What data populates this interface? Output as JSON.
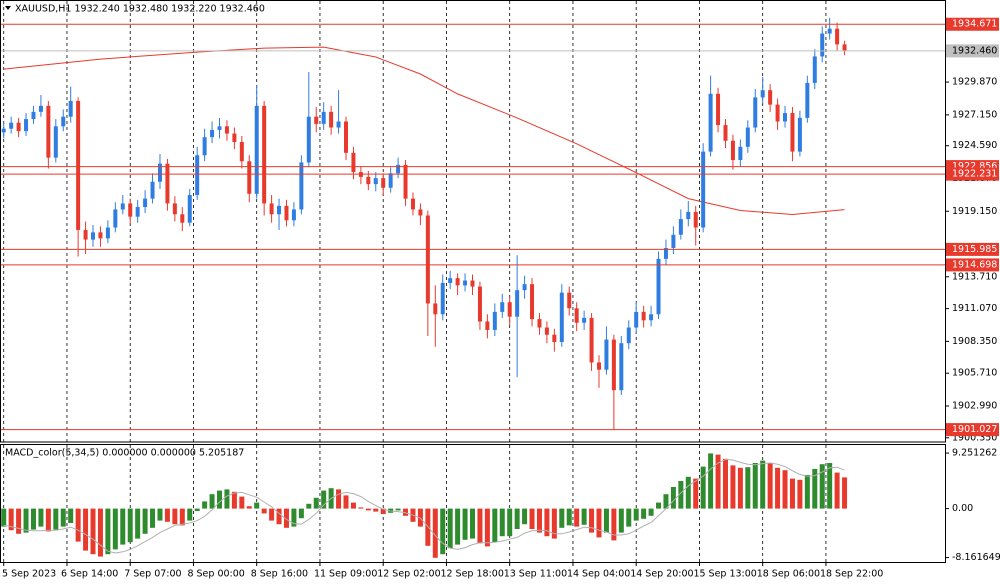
{
  "chart_data": [
    {
      "type": "candlestick",
      "title": "XAUUSD,H1  1932.240 1932.480 1932.220 1932.460",
      "up_color": "#2f7de1",
      "down_color": "#e8392d",
      "xlim": [
        -0.5,
        126.5
      ],
      "xticks": [
        {
          "value": 0,
          "label": "5 Sep 2023"
        },
        {
          "value": 8.5,
          "label": "6 Sep 14:00"
        },
        {
          "value": 17,
          "label": "7 Sep 07:00"
        },
        {
          "value": 25.5,
          "label": "8 Sep 00:00"
        },
        {
          "value": 34,
          "label": "8 Sep 16:00"
        },
        {
          "value": 42.5,
          "label": "11 Sep 09:00"
        },
        {
          "value": 51,
          "label": "12 Sep 02:00"
        },
        {
          "value": 59.5,
          "label": "12 Sep 18:00"
        },
        {
          "value": 68,
          "label": "13 Sep 11:00"
        },
        {
          "value": 76.5,
          "label": "14 Sep 04:00"
        },
        {
          "value": 85,
          "label": "14 Sep 20:00"
        },
        {
          "value": 93.5,
          "label": "15 Sep 13:00"
        },
        {
          "value": 102,
          "label": "18 Sep 06:00"
        },
        {
          "value": 110.5,
          "label": "18 Sep 22:00"
        }
      ],
      "ylim": [
        1900.0,
        1936.6
      ],
      "yticks": [
        {
          "value": 1929.87,
          "label": "1929.870"
        },
        {
          "value": 1927.15,
          "label": "1927.150"
        },
        {
          "value": 1924.59,
          "label": "1924.590"
        },
        {
          "value": 1921.87,
          "label": "1921.870"
        },
        {
          "value": 1919.15,
          "label": "1919.150"
        },
        {
          "value": 1913.71,
          "label": "1913.710"
        },
        {
          "value": 1911.07,
          "label": "1911.070"
        },
        {
          "value": 1908.35,
          "label": "1908.350"
        },
        {
          "value": 1905.71,
          "label": "1905.710"
        },
        {
          "value": 1902.99,
          "label": "1902.990"
        },
        {
          "value": 1900.35,
          "label": "1900.350"
        }
      ],
      "levels": [
        {
          "value": 1934.671,
          "label": "1934.671",
          "color": "#e8392d"
        },
        {
          "value": 1932.46,
          "label": "1932.460",
          "color": "#c0c0c0"
        },
        {
          "value": 1922.856,
          "label": "1922.856",
          "color": "#e8392d"
        },
        {
          "value": 1922.231,
          "label": "1922.231",
          "color": "#e8392d"
        },
        {
          "value": 1915.985,
          "label": "1915.985",
          "color": "#e8392d"
        },
        {
          "value": 1914.698,
          "label": "1914.698",
          "color": "#e8392d"
        },
        {
          "value": 1901.027,
          "label": "1901.027",
          "color": "#e8392d"
        }
      ],
      "open": [
        1925.7,
        1926.0,
        1926.5,
        1925.8,
        1926.8,
        1927.4,
        1927.9,
        1923.6,
        1926.2,
        1927.0,
        1928.3,
        1917.6,
        1916.8,
        1917.4,
        1916.9,
        1917.8,
        1919.3,
        1919.8,
        1918.7,
        1919.5,
        1920.2,
        1921.6,
        1923.1,
        1919.8,
        1918.9,
        1918.2,
        1920.5,
        1923.8,
        1925.3,
        1925.9,
        1926.2,
        1925.6,
        1924.9,
        1923.3,
        1920.6,
        1927.9,
        1919.8,
        1918.9,
        1919.6,
        1918.4,
        1919.3,
        1923.2,
        1927.0,
        1926.4,
        1927.4,
        1926.1,
        1926.6,
        1924.0,
        1922.4,
        1922.0,
        1921.4,
        1921.9,
        1921.1,
        1922.3,
        1923.0,
        1920.2,
        1919.3,
        1918.8,
        1911.5,
        1910.6,
        1913.2,
        1913.6,
        1913.0,
        1913.4,
        1912.9,
        1910.0,
        1909.3,
        1910.8,
        1911.6,
        1910.4,
        1912.6,
        1913.1,
        1910.2,
        1909.5,
        1908.9,
        1908.3,
        1912.4,
        1911.1,
        1909.9,
        1910.3,
        1906.6,
        1906.0,
        1908.5,
        1904.3,
        1908.2,
        1909.5,
        1910.8,
        1910.1,
        1910.6,
        1915.2,
        1916.1,
        1917.2,
        1918.5,
        1919.1,
        1917.8,
        1924.1,
        1928.9,
        1926.3,
        1925.0,
        1923.4,
        1924.5,
        1926.1,
        1928.6,
        1929.2,
        1928.0,
        1926.6,
        1927.3,
        1924.1,
        1926.9,
        1929.8,
        1932.0,
        1933.9,
        1934.3,
        1933.0
      ],
      "high": [
        1926.6,
        1927.0,
        1926.9,
        1927.3,
        1927.9,
        1928.8,
        1928.3,
        1926.8,
        1927.6,
        1929.5,
        1928.6,
        1918.3,
        1918.0,
        1917.9,
        1918.4,
        1919.9,
        1920.5,
        1920.2,
        1920.1,
        1920.9,
        1922.3,
        1923.9,
        1923.5,
        1920.4,
        1919.5,
        1921.0,
        1924.5,
        1926.0,
        1926.6,
        1926.9,
        1926.7,
        1926.1,
        1925.4,
        1923.8,
        1929.6,
        1928.3,
        1920.5,
        1920.2,
        1920.1,
        1919.9,
        1923.8,
        1930.7,
        1927.8,
        1928.2,
        1927.9,
        1929.2,
        1927.0,
        1924.5,
        1922.9,
        1922.5,
        1922.4,
        1922.3,
        1922.8,
        1923.6,
        1923.4,
        1920.7,
        1919.8,
        1919.2,
        1913.0,
        1913.9,
        1914.2,
        1914.0,
        1914.0,
        1913.9,
        1913.3,
        1910.6,
        1911.5,
        1912.3,
        1912.1,
        1915.5,
        1913.8,
        1913.6,
        1910.7,
        1910.0,
        1909.4,
        1913.1,
        1912.9,
        1911.6,
        1910.9,
        1910.7,
        1907.2,
        1909.6,
        1908.9,
        1908.8,
        1910.1,
        1911.6,
        1911.3,
        1911.3,
        1915.8,
        1916.8,
        1917.9,
        1919.3,
        1920.0,
        1919.6,
        1924.8,
        1930.4,
        1929.4,
        1926.8,
        1925.5,
        1925.1,
        1926.7,
        1929.3,
        1930.3,
        1929.7,
        1928.5,
        1927.9,
        1927.8,
        1927.5,
        1930.4,
        1932.6,
        1934.5,
        1935.2,
        1934.8,
        1933.3
      ],
      "low": [
        1925.2,
        1925.6,
        1925.3,
        1925.4,
        1926.4,
        1927.0,
        1922.7,
        1923.2,
        1925.8,
        1926.5,
        1915.4,
        1915.6,
        1916.2,
        1916.2,
        1916.5,
        1917.4,
        1918.9,
        1918.1,
        1918.2,
        1919.0,
        1919.8,
        1921.0,
        1919.2,
        1918.3,
        1917.5,
        1917.9,
        1920.1,
        1923.3,
        1924.8,
        1925.2,
        1925.0,
        1924.3,
        1922.7,
        1919.9,
        1920.2,
        1918.8,
        1918.2,
        1917.6,
        1917.9,
        1917.9,
        1918.9,
        1922.8,
        1925.7,
        1925.9,
        1925.5,
        1925.6,
        1923.4,
        1921.8,
        1921.4,
        1920.9,
        1920.8,
        1920.5,
        1920.7,
        1921.9,
        1919.6,
        1918.8,
        1918.0,
        1908.8,
        1907.9,
        1910.1,
        1912.7,
        1912.2,
        1912.5,
        1912.2,
        1909.3,
        1908.6,
        1908.8,
        1910.3,
        1909.7,
        1905.4,
        1911.9,
        1909.6,
        1908.9,
        1908.2,
        1907.5,
        1907.9,
        1910.5,
        1909.2,
        1909.3,
        1905.9,
        1904.5,
        1905.6,
        1901.0,
        1903.9,
        1907.7,
        1909.0,
        1909.5,
        1909.6,
        1910.2,
        1914.7,
        1915.6,
        1916.8,
        1917.9,
        1916.3,
        1917.4,
        1923.7,
        1925.7,
        1924.4,
        1922.6,
        1922.9,
        1924.0,
        1925.7,
        1928.1,
        1927.4,
        1925.9,
        1926.1,
        1923.3,
        1923.7,
        1926.5,
        1929.3,
        1931.5,
        1933.4,
        1932.5,
        1932.1
      ],
      "close": [
        1926.0,
        1926.5,
        1925.8,
        1926.8,
        1927.4,
        1927.9,
        1923.6,
        1926.2,
        1927.0,
        1928.3,
        1917.6,
        1916.8,
        1917.4,
        1916.9,
        1917.8,
        1919.3,
        1919.8,
        1918.7,
        1919.5,
        1920.2,
        1921.6,
        1923.1,
        1919.8,
        1918.9,
        1918.2,
        1920.5,
        1923.8,
        1925.3,
        1925.9,
        1926.2,
        1925.6,
        1924.9,
        1923.3,
        1920.6,
        1927.9,
        1919.8,
        1918.9,
        1919.6,
        1918.4,
        1919.3,
        1923.2,
        1927.0,
        1926.4,
        1927.4,
        1926.1,
        1926.6,
        1924.0,
        1922.4,
        1922.0,
        1921.4,
        1921.9,
        1921.1,
        1922.3,
        1923.0,
        1920.2,
        1919.3,
        1918.8,
        1911.5,
        1910.6,
        1913.2,
        1913.6,
        1913.0,
        1913.4,
        1912.9,
        1910.0,
        1909.3,
        1910.8,
        1911.6,
        1910.4,
        1912.6,
        1913.1,
        1910.2,
        1909.5,
        1908.9,
        1908.3,
        1912.4,
        1911.1,
        1909.9,
        1910.3,
        1906.6,
        1906.0,
        1908.5,
        1904.3,
        1908.2,
        1909.5,
        1910.8,
        1910.1,
        1910.6,
        1915.2,
        1916.1,
        1917.2,
        1918.5,
        1919.1,
        1917.8,
        1924.1,
        1928.9,
        1926.3,
        1925.0,
        1923.4,
        1924.5,
        1926.1,
        1928.6,
        1929.2,
        1928.0,
        1926.6,
        1927.3,
        1924.1,
        1926.9,
        1929.8,
        1932.0,
        1933.9,
        1934.3,
        1933.0,
        1932.46
      ],
      "ma": {
        "color": "#e8392d",
        "x": [
          0,
          13,
          26,
          35,
          43,
          50,
          56,
          61,
          69,
          77,
          85,
          92,
          99,
          106,
          113
        ],
        "values": [
          1930.95,
          1931.78,
          1932.36,
          1932.69,
          1932.77,
          1931.95,
          1930.54,
          1928.89,
          1926.9,
          1924.75,
          1922.35,
          1920.2,
          1919.21,
          1918.88,
          1919.29
        ]
      }
    },
    {
      "type": "bar",
      "title": "MACD_color(5,34,5) 0.000000 0.000000 5.205187",
      "up_color": "#2e8b2e",
      "down_color": "#e8392d",
      "signal_color": "#b0b0b0",
      "ylim": [
        -8.9,
        10.6
      ],
      "yticks": [
        9.251262,
        {
          "value": 0,
          "label": "0.00"
        },
        -8.161649
      ],
      "values": [
        -3.0,
        -3.6,
        -4.2,
        -4.0,
        -3.5,
        -3.0,
        -3.8,
        -3.5,
        -3.0,
        -2.4,
        -5.5,
        -7.0,
        -7.6,
        -8.0,
        -7.6,
        -6.8,
        -6.0,
        -5.6,
        -5.0,
        -4.2,
        -3.2,
        -2.0,
        -2.2,
        -2.6,
        -2.8,
        -2.0,
        -0.4,
        1.2,
        2.4,
        3.0,
        3.2,
        2.8,
        2.0,
        0.4,
        1.0,
        -0.8,
        -2.0,
        -2.6,
        -3.2,
        -3.0,
        -1.6,
        0.8,
        1.8,
        3.0,
        3.4,
        3.2,
        2.2,
        1.0,
        0.2,
        -0.3,
        -0.5,
        -0.9,
        -0.7,
        -0.3,
        -1.2,
        -2.2,
        -3.0,
        -6.2,
        -8.2,
        -7.6,
        -6.6,
        -6.0,
        -5.2,
        -5.0,
        -5.8,
        -6.3,
        -5.6,
        -4.6,
        -4.6,
        -3.4,
        -2.6,
        -3.4,
        -4.0,
        -4.6,
        -5.0,
        -3.2,
        -2.8,
        -3.0,
        -2.7,
        -4.0,
        -4.8,
        -4.0,
        -5.3,
        -4.0,
        -3.0,
        -2.0,
        -1.7,
        -1.2,
        1.0,
        2.4,
        3.6,
        4.6,
        5.3,
        5.0,
        7.0,
        9.2,
        9.0,
        8.3,
        7.2,
        6.8,
        6.9,
        7.6,
        8.0,
        7.6,
        6.8,
        6.4,
        5.0,
        4.8,
        5.6,
        6.6,
        7.4,
        7.6,
        6.0,
        5.2
      ],
      "signal": [
        -2.8,
        -3.0,
        -3.3,
        -3.6,
        -3.7,
        -3.7,
        -3.6,
        -3.6,
        -3.4,
        -3.1,
        -3.6,
        -4.3,
        -5.1,
        -6.1,
        -7.1,
        -7.4,
        -7.2,
        -6.8,
        -6.2,
        -5.5,
        -4.8,
        -4.0,
        -3.4,
        -2.8,
        -2.6,
        -2.4,
        -2.0,
        -1.3,
        -0.2,
        1.1,
        2.1,
        2.6,
        2.7,
        2.3,
        1.9,
        1.1,
        0.3,
        -0.8,
        -1.8,
        -2.5,
        -2.6,
        -1.8,
        -0.8,
        0.6,
        1.7,
        2.4,
        2.7,
        2.5,
        2.0,
        1.2,
        0.5,
        -0.1,
        -0.4,
        -0.5,
        -0.7,
        -1.1,
        -1.6,
        -3.0,
        -4.5,
        -5.8,
        -6.6,
        -6.8,
        -6.5,
        -6.0,
        -5.7,
        -5.7,
        -5.6,
        -5.4,
        -5.1,
        -4.8,
        -4.1,
        -3.7,
        -3.6,
        -3.7,
        -4.2,
        -4.2,
        -3.9,
        -3.5,
        -3.1,
        -3.2,
        -3.6,
        -3.9,
        -4.4,
        -4.4,
        -4.2,
        -3.6,
        -2.9,
        -2.3,
        -1.2,
        0.0,
        1.3,
        2.6,
        3.8,
        4.6,
        5.4,
        6.6,
        7.6,
        8.2,
        8.1,
        7.7,
        7.4,
        7.3,
        7.5,
        7.6,
        7.4,
        7.0,
        6.3,
        5.7,
        5.4,
        5.5,
        6.1,
        6.8,
        6.9,
        6.4
      ]
    }
  ]
}
